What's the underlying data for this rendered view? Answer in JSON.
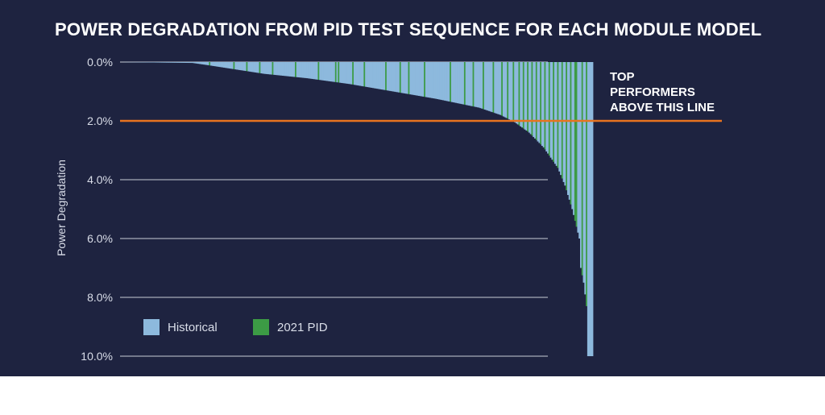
{
  "chart_data": {
    "type": "bar",
    "title": "POWER DEGRADATION FROM PID TEST SEQUENCE FOR EACH MODULE MODEL",
    "xlabel": "",
    "ylabel": "Power Degradation",
    "y_ticks": [
      "0.0%",
      "2.0%",
      "4.0%",
      "6.0%",
      "8.0%",
      "10.0%"
    ],
    "ylim": [
      0,
      10
    ],
    "y_axis_inverted": true,
    "grid": true,
    "legend_position": "bottom-left",
    "threshold": {
      "value": 2.0,
      "label_lines": [
        "TOP",
        "PERFORMERS",
        "ABOVE THIS LINE"
      ]
    },
    "series": [
      {
        "name": "Historical",
        "color": "#8db9dd"
      },
      {
        "name": "2021 PID",
        "color": "#3c9b45"
      }
    ],
    "bar_count": 330,
    "pid_positions": [
      62,
      79,
      88,
      97,
      106,
      122,
      138,
      150,
      152,
      162,
      170,
      185,
      195,
      201,
      212,
      230,
      240,
      246,
      253,
      260,
      266,
      270,
      274,
      278,
      281,
      284,
      287,
      290,
      293,
      296,
      299,
      302,
      305,
      308,
      311,
      314,
      317,
      318,
      322,
      325
    ],
    "value_knots": [
      [
        0,
        0.0
      ],
      [
        50,
        0.03
      ],
      [
        60,
        0.1
      ],
      [
        80,
        0.25
      ],
      [
        100,
        0.4
      ],
      [
        130,
        0.55
      ],
      [
        160,
        0.75
      ],
      [
        190,
        1.0
      ],
      [
        220,
        1.25
      ],
      [
        250,
        1.55
      ],
      [
        265,
        1.8
      ],
      [
        275,
        2.05
      ],
      [
        285,
        2.4
      ],
      [
        295,
        2.9
      ],
      [
        305,
        3.6
      ],
      [
        310,
        4.2
      ],
      [
        315,
        5.0
      ],
      [
        318,
        5.6
      ],
      [
        320,
        6.0
      ],
      [
        321,
        7.0
      ],
      [
        323,
        7.5
      ],
      [
        325,
        8.3
      ],
      [
        326,
        10.0
      ],
      [
        329,
        10.0
      ]
    ]
  }
}
